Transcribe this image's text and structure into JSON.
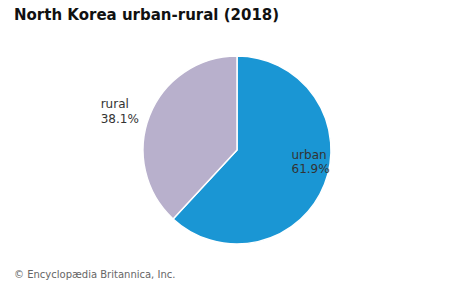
{
  "chart_data": {
    "type": "pie",
    "title": "North Korea urban-rural (2018)",
    "categories": [
      "urban",
      "rural"
    ],
    "values": [
      61.9,
      38.1
    ],
    "value_labels": [
      "61.9%",
      "38.1%"
    ],
    "colors": [
      "#1a96d4",
      "#b8b0cc"
    ],
    "data_labels": true,
    "annotations": [
      "© Encyclopædia Britannica, Inc."
    ]
  }
}
